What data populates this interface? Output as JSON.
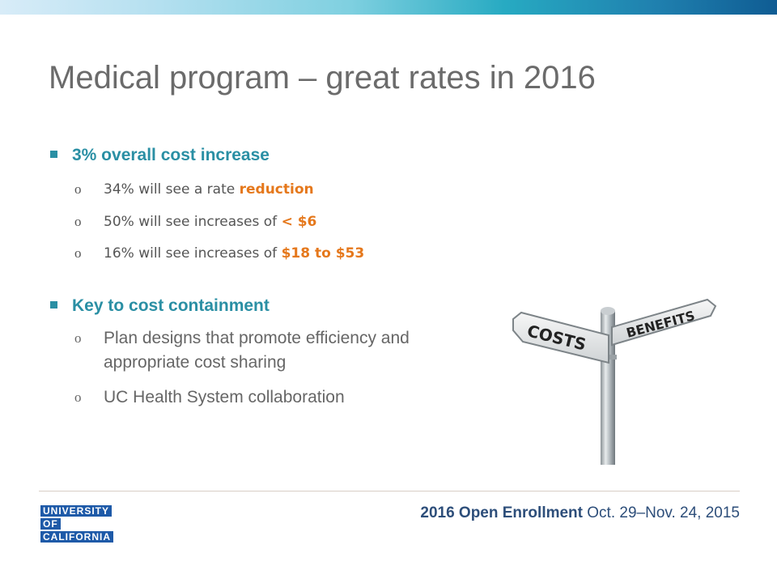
{
  "slide": {
    "title": "Medical program – great rates in 2016"
  },
  "bullets": {
    "first": {
      "label": "3% overall cost increase",
      "items": [
        {
          "marker": "o",
          "text": "34% will see a rate ",
          "highlight": "reduction"
        },
        {
          "marker": "o",
          "text": "50% will see increases of ",
          "highlight": "< $6"
        },
        {
          "marker": "o",
          "text": "16% will see increases of ",
          "highlight": "$18 to $53"
        }
      ]
    },
    "second": {
      "label": "Key to cost containment",
      "items": [
        {
          "marker": "o",
          "text": "Plan designs that promote efficiency and appropriate cost sharing"
        },
        {
          "marker": "o",
          "text": "UC Health System collaboration"
        }
      ]
    }
  },
  "illustration": {
    "sign_left": "COSTS",
    "sign_right": "BENEFITS"
  },
  "footer": {
    "logo_lines": [
      "UNIVERSITY",
      "OF",
      "CALIFORNIA"
    ],
    "enrollment_bold": "2016 Open Enrollment",
    "enrollment_dates": " Oct. 29–Nov. 24, 2015"
  },
  "colors": {
    "accent_teal": "#2a8fa4",
    "highlight_orange": "#e5781c",
    "uc_blue": "#1e5aa8",
    "footer_text": "#2d4e7a"
  }
}
